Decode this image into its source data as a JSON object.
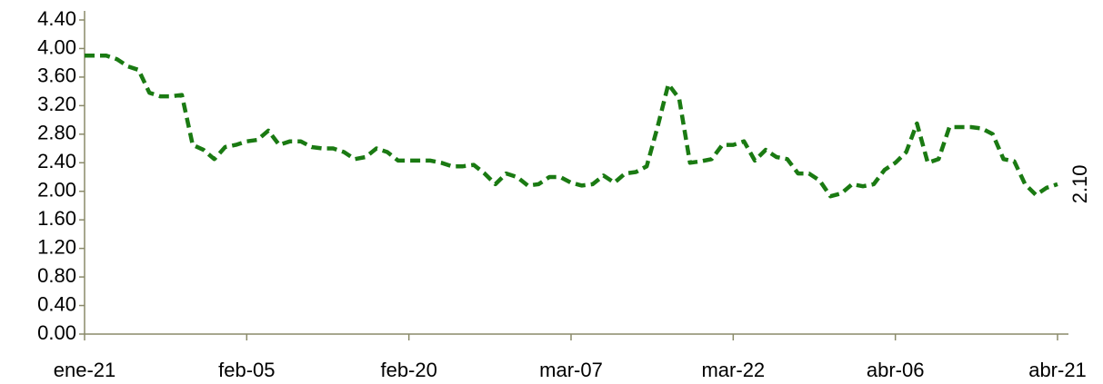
{
  "chart_data": {
    "type": "line",
    "categories": [
      "ene-21",
      null,
      null,
      null,
      null,
      null,
      null,
      null,
      null,
      null,
      null,
      null,
      null,
      null,
      null,
      "feb-05",
      null,
      null,
      null,
      null,
      null,
      null,
      null,
      null,
      null,
      null,
      null,
      null,
      null,
      null,
      "feb-20",
      null,
      null,
      null,
      null,
      null,
      null,
      null,
      null,
      null,
      null,
      null,
      null,
      null,
      null,
      "mar-07",
      null,
      null,
      null,
      null,
      null,
      null,
      null,
      null,
      null,
      null,
      null,
      null,
      null,
      null,
      "mar-22",
      null,
      null,
      null,
      null,
      null,
      null,
      null,
      null,
      null,
      null,
      null,
      null,
      null,
      null,
      "abr-06",
      null,
      null,
      null,
      null,
      null,
      null,
      null,
      null,
      null,
      null,
      null,
      null,
      null,
      null,
      "abr-21"
    ],
    "series": [
      {
        "color": "#1a7a12",
        "values": [
          3.9,
          3.9,
          3.9,
          3.85,
          3.75,
          3.7,
          3.38,
          3.33,
          3.33,
          3.35,
          2.65,
          2.58,
          2.45,
          2.62,
          2.65,
          2.7,
          2.72,
          2.85,
          2.65,
          2.7,
          2.7,
          2.62,
          2.6,
          2.6,
          2.55,
          2.45,
          2.48,
          2.6,
          2.55,
          2.43,
          2.43,
          2.43,
          2.43,
          2.4,
          2.35,
          2.35,
          2.37,
          2.25,
          2.1,
          2.25,
          2.2,
          2.08,
          2.1,
          2.2,
          2.2,
          2.12,
          2.08,
          2.1,
          2.22,
          2.12,
          2.25,
          2.27,
          2.35,
          2.9,
          3.5,
          3.3,
          2.4,
          2.42,
          2.45,
          2.65,
          2.65,
          2.7,
          2.43,
          2.58,
          2.48,
          2.45,
          2.25,
          2.25,
          2.15,
          1.93,
          1.97,
          2.1,
          2.07,
          2.1,
          2.3,
          2.4,
          2.55,
          2.95,
          2.4,
          2.45,
          2.9,
          2.9,
          2.9,
          2.88,
          2.8,
          2.45,
          2.42,
          2.1,
          1.95,
          2.05,
          2.1
        ]
      }
    ],
    "annotation": "2.10",
    "ylim": [
      0,
      4.4
    ],
    "yticks": [
      {
        "value": 0,
        "label": "0.00"
      },
      {
        "value": 0.4,
        "label": "0.40"
      },
      {
        "value": 0.8,
        "label": "0.80"
      },
      {
        "value": 1.2,
        "label": "1.20"
      },
      {
        "value": 1.6,
        "label": "1.60"
      },
      {
        "value": 2,
        "label": "2.00"
      },
      {
        "value": 2.4,
        "label": "2.40"
      },
      {
        "value": 2.8,
        "label": "2.80"
      },
      {
        "value": 3.2,
        "label": "3.20"
      },
      {
        "value": 3.6,
        "label": "3.60"
      },
      {
        "value": 4,
        "label": "4.00"
      },
      {
        "value": 4.4,
        "label": "4.40"
      }
    ],
    "grid": false
  }
}
